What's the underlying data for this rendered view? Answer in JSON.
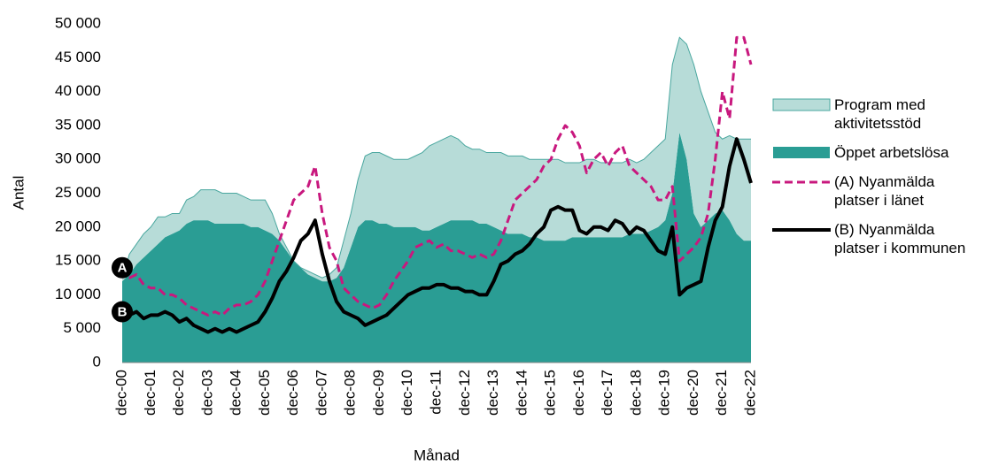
{
  "chart_data": {
    "type": "area",
    "x_label": "Månad",
    "y_label": "Antal",
    "categories": [
      "dec-00",
      null,
      null,
      null,
      "dec-01",
      null,
      null,
      null,
      "dec-02",
      null,
      null,
      null,
      "dec-03",
      null,
      null,
      null,
      "dec-04",
      null,
      null,
      null,
      "dec-05",
      null,
      null,
      null,
      "dec-06",
      null,
      null,
      null,
      "dec-07",
      null,
      null,
      null,
      "dec-08",
      null,
      null,
      null,
      "dec-09",
      null,
      null,
      null,
      "dec-10",
      null,
      null,
      null,
      "dec-11",
      null,
      null,
      null,
      "dec-12",
      null,
      null,
      null,
      "dec-13",
      null,
      null,
      null,
      "dec-14",
      null,
      null,
      null,
      "dec-15",
      null,
      null,
      null,
      "dec-16",
      null,
      null,
      null,
      "dec-17",
      null,
      null,
      null,
      "dec-18",
      null,
      null,
      null,
      "dec-19",
      null,
      null,
      null,
      "dec-20",
      null,
      null,
      null,
      "dec-21",
      null,
      null,
      null,
      "dec-22"
    ],
    "ylim": [
      0,
      50000
    ],
    "yticks": [
      0,
      {
        "value": 5000,
        "label": "5 000"
      },
      {
        "value": 10000,
        "label": "10 000"
      },
      {
        "value": 15000,
        "label": "15 000"
      },
      {
        "value": 20000,
        "label": "20 000"
      },
      {
        "value": 25000,
        "label": "25 000"
      },
      {
        "value": 30000,
        "label": "30 000"
      },
      {
        "value": 35000,
        "label": "35 000"
      },
      {
        "value": 40000,
        "label": "40 000"
      },
      {
        "value": 45000,
        "label": "45 000"
      },
      {
        "value": 50000,
        "label": "50 000"
      }
    ],
    "stacked": true,
    "series": [
      {
        "name": "Öppet arbetslösa",
        "type": "area",
        "color": "#2a9d94",
        "values": [
          12000,
          13000,
          14500,
          15500,
          16500,
          17500,
          18500,
          19000,
          19500,
          20500,
          21000,
          21000,
          21000,
          20500,
          20500,
          20500,
          20500,
          20500,
          20000,
          20000,
          19500,
          19000,
          18000,
          16500,
          15000,
          14000,
          13000,
          12500,
          12000,
          12000,
          12500,
          14000,
          17000,
          20000,
          21000,
          21000,
          20500,
          20500,
          20000,
          20000,
          20000,
          20000,
          19500,
          19500,
          20000,
          20500,
          21000,
          21000,
          21000,
          21000,
          20500,
          20500,
          20000,
          19500,
          19000,
          19000,
          19000,
          18500,
          18500,
          18000,
          18000,
          18000,
          18000,
          18500,
          18500,
          18500,
          18500,
          18500,
          18500,
          18500,
          18500,
          19000,
          19000,
          19000,
          19500,
          20000,
          21000,
          25000,
          34000,
          30000,
          22000,
          20000,
          21000,
          22000,
          22500,
          21000,
          19000,
          18000,
          18000
        ]
      },
      {
        "name": "Program med aktivitetsstöd",
        "type": "area",
        "color": "#b7dcd8",
        "edge": "#4aa79f",
        "values": [
          500,
          3000,
          3000,
          3500,
          3500,
          4000,
          3000,
          3000,
          2500,
          3500,
          3500,
          4500,
          4500,
          5000,
          4500,
          4500,
          4500,
          4000,
          4000,
          4000,
          4500,
          3000,
          1000,
          500,
          0,
          0,
          500,
          500,
          500,
          1000,
          1500,
          4000,
          5000,
          7000,
          9500,
          10000,
          10500,
          10000,
          10000,
          10000,
          10000,
          10500,
          11500,
          12500,
          12500,
          12500,
          12500,
          12000,
          11000,
          10500,
          11000,
          10500,
          11000,
          11500,
          11500,
          11500,
          11500,
          11500,
          11500,
          12000,
          12000,
          12000,
          11500,
          11000,
          11000,
          11500,
          11500,
          11000,
          11000,
          11000,
          11000,
          11000,
          10500,
          11000,
          11500,
          12000,
          12000,
          19000,
          14000,
          17000,
          22000,
          20000,
          16000,
          12000,
          10500,
          12500,
          14000,
          15000,
          15000
        ]
      },
      {
        "name": "(A) Nyanmälda platser i länet",
        "type": "line",
        "color": "#c8187e",
        "dash": true,
        "values": [
          14000,
          12500,
          13000,
          11500,
          11000,
          11000,
          10000,
          10000,
          9500,
          8500,
          8000,
          7500,
          7000,
          7500,
          7000,
          8000,
          8500,
          8500,
          9000,
          10000,
          12000,
          15000,
          18000,
          21000,
          24000,
          25000,
          26000,
          29000,
          22000,
          17000,
          15000,
          11000,
          10000,
          9000,
          8500,
          8000,
          8500,
          10000,
          12000,
          13500,
          15000,
          17000,
          17500,
          18000,
          17000,
          17500,
          16500,
          16500,
          16000,
          15500,
          16000,
          15500,
          16000,
          18000,
          21000,
          24000,
          25000,
          26000,
          27000,
          29000,
          30000,
          33000,
          35000,
          34000,
          32000,
          28000,
          30000,
          31000,
          29000,
          31000,
          32000,
          29000,
          28000,
          27000,
          26000,
          24000,
          24000,
          26000,
          15000,
          16000,
          17000,
          18500,
          22000,
          30000,
          40000,
          36000,
          48000,
          48000,
          44000
        ]
      },
      {
        "name": "(B) Nyanmälda platser i kommunen",
        "type": "line",
        "color": "#000000",
        "values": [
          7500,
          7000,
          7500,
          6500,
          7000,
          7000,
          7500,
          7000,
          6000,
          6500,
          5500,
          5000,
          4500,
          5000,
          4500,
          5000,
          4500,
          5000,
          5500,
          6000,
          7500,
          9500,
          12000,
          13500,
          15500,
          18000,
          19000,
          21000,
          16000,
          12000,
          9000,
          7500,
          7000,
          6500,
          5500,
          6000,
          6500,
          7000,
          8000,
          9000,
          10000,
          10500,
          11000,
          11000,
          11500,
          11500,
          11000,
          11000,
          10500,
          10500,
          10000,
          10000,
          12000,
          14500,
          15000,
          16000,
          16500,
          17500,
          19000,
          20000,
          22500,
          23000,
          22500,
          22500,
          19500,
          19000,
          20000,
          20000,
          19500,
          21000,
          20500,
          19000,
          20000,
          19500,
          18000,
          16500,
          16000,
          20000,
          10000,
          11000,
          11500,
          12000,
          17000,
          21000,
          23000,
          29000,
          33000,
          30000,
          26500
        ]
      }
    ],
    "legend_order": [
      1,
      0,
      2,
      3
    ],
    "annotations": [
      {
        "text": "A",
        "series": 2
      },
      {
        "text": "B",
        "series": 3
      }
    ]
  }
}
